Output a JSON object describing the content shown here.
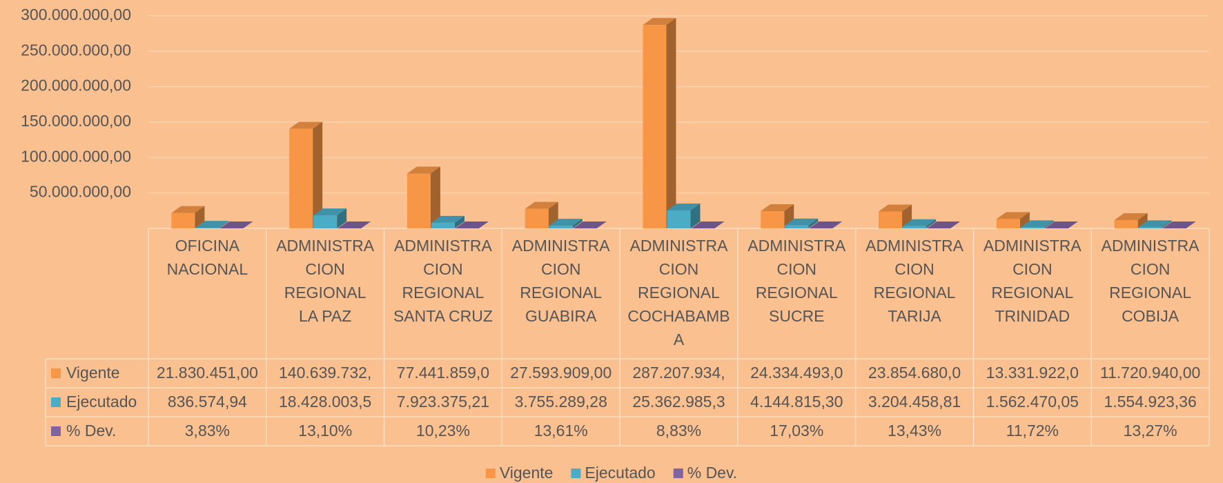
{
  "chart_data": {
    "type": "bar3d",
    "categories": [
      "OFICINA NACIONAL",
      "ADMINISTRACION REGIONAL LA PAZ",
      "ADMINISTRACION REGIONAL SANTA CRUZ",
      "ADMINISTRACION REGIONAL GUABIRA",
      "ADMINISTRACION REGIONAL COCHABAMBA",
      "ADMINISTRACION REGIONAL SUCRE",
      "ADMINISTRACION REGIONAL TARIJA",
      "ADMINISTRACION REGIONAL TRINIDAD",
      "ADMINISTRACION REGIONAL COBIJA"
    ],
    "series": [
      {
        "name": "Vigente",
        "color": "#f79646",
        "values": [
          21830451,
          140639732,
          77441859,
          27593909,
          287207934,
          24334493,
          23854680,
          13331922,
          11720940
        ],
        "value_labels": [
          "21.830.451,00",
          "140.639.732,",
          "77.441.859,0",
          "27.593.909,00",
          "287.207.934,",
          "24.334.493,0",
          "23.854.680,0",
          "13.331.922,0",
          "11.720.940,00"
        ]
      },
      {
        "name": "Ejecutado",
        "color": "#4bacc6",
        "values": [
          836574.94,
          18428003.5,
          7923375.21,
          3755289.28,
          25362985.3,
          4144815.3,
          3204458.81,
          1562470.05,
          1554923.36
        ],
        "value_labels": [
          "836.574,94",
          "18.428.003,5",
          "7.923.375,21",
          "3.755.289,28",
          "25.362.985,3",
          "4.144.815,30",
          "3.204.458,81",
          "1.562.470,05",
          "1.554.923,36"
        ]
      },
      {
        "name": "% Dev.",
        "color": "#8064a2",
        "values": [
          3.83,
          13.1,
          10.23,
          13.61,
          8.83,
          17.03,
          13.43,
          11.72,
          13.27
        ],
        "value_labels": [
          "3,83%",
          "13,10%",
          "10,23%",
          "13,61%",
          "8,83%",
          "17,03%",
          "13,43%",
          "11,72%",
          "13,27%"
        ]
      }
    ],
    "ylim": [
      0,
      300000000
    ],
    "yticks": [
      {
        "value": 50000000,
        "label": "50.000.000,00"
      },
      {
        "value": 100000000,
        "label": "100.000.000,00"
      },
      {
        "value": 150000000,
        "label": "150.000.000,00"
      },
      {
        "value": 200000000,
        "label": "200.000.000,00"
      },
      {
        "value": 250000000,
        "label": "250.000.000,00"
      },
      {
        "value": 300000000,
        "label": "300.000.000,00"
      }
    ],
    "grid": true,
    "legend": "bottom"
  }
}
